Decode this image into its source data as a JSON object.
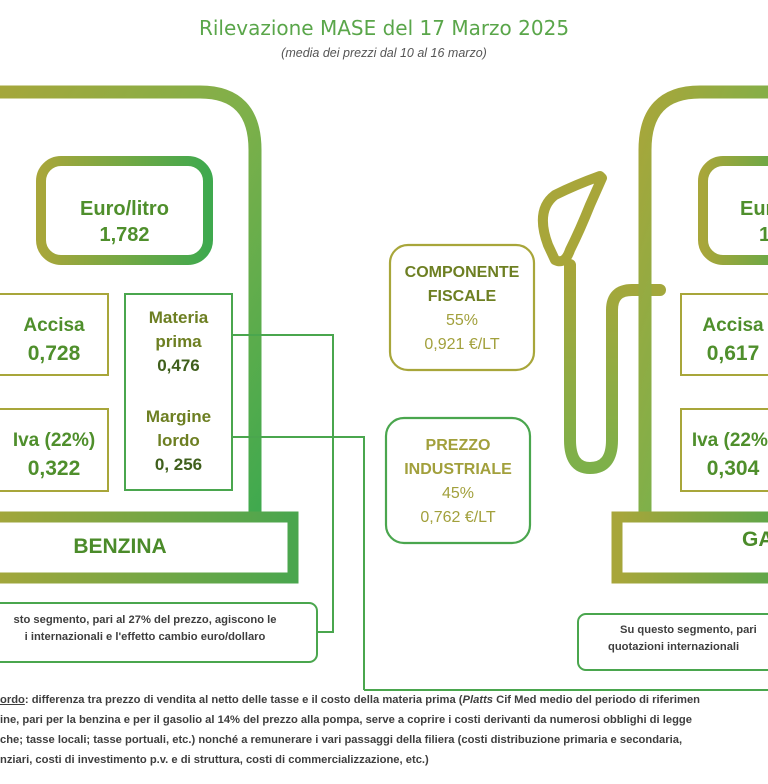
{
  "header": {
    "title": "Rilevazione MASE del 17 Marzo 2025",
    "subtitle": "(media dei prezzi dal 10 al 16 marzo)"
  },
  "benzina": {
    "price_label": "Euro/litro",
    "price_value": "1,782",
    "accisa_label": "Accisa",
    "accisa_value": "0,728",
    "iva_label": "Iva (22%)",
    "iva_value": "0,322",
    "materia_label_1": "Materia",
    "materia_label_2": "prima",
    "materia_value": "0,476",
    "margine_label_1": "Margine",
    "margine_label_2": "lordo",
    "margine_value": "0, 256",
    "name": "BENZINA",
    "note_line_1": "sto segmento, pari al 27% del prezzo, agiscono le",
    "note_line_2": "i internazionali e l'effetto cambio euro/dollaro"
  },
  "center": {
    "fiscale_l1": "COMPONENTE",
    "fiscale_l2": "FISCALE",
    "fiscale_pct": "55%",
    "fiscale_val": "0,921 €/LT",
    "industriale_l1": "PREZZO",
    "industriale_l2": "INDUSTRIALE",
    "industriale_pct": "45%",
    "industriale_val": "0,762 €/LT"
  },
  "gasolio": {
    "price_label": "Eur",
    "price_value": "1",
    "accisa_label": "Accisa",
    "accisa_value": "0,617",
    "iva_label": "Iva (22%)",
    "iva_value": "0,304",
    "name": "GA",
    "note_line_1": "Su questo segmento, pari",
    "note_line_2": "quotazioni internazionali"
  },
  "footer": {
    "l1_term": "ordo",
    "l1_a": ": differenza tra prezzo di vendita al netto delle tasse e il costo della materia prima (",
    "l1_platts": "Platts",
    "l1_b": " Cif Med medio del periodo di riferimen",
    "l2": "ine, pari per la benzina e per il gasolio al 14% del prezzo alla pompa, serve a coprire i costi derivanti da numerosi obblighi di legge",
    "l3": "che; tasse locali; tasse portuali, etc.) nonché a remunerare i vari passaggi della filiera (costi distribuzione primaria e secondaria,",
    "l4": "nziari, costi di investimento p.v. e di struttura, costi di commercializzazione, etc.)"
  },
  "colors": {
    "green": "#4aa64e",
    "olive": "#9aa63a",
    "title": "#5aa64a"
  }
}
